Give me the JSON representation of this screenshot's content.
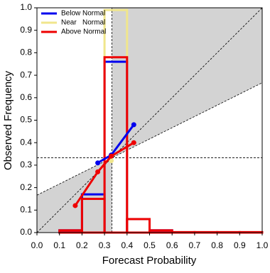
{
  "chart_data": {
    "type": "reliability",
    "xlabel": "Forecast Probability",
    "ylabel": "Observed Frequency",
    "xlim": [
      0,
      1
    ],
    "ylim": [
      0,
      1
    ],
    "xticks": [
      {
        "value": 0,
        "label": "0.0"
      },
      0.1,
      0.2,
      0.3,
      0.4,
      0.5,
      0.6,
      0.7,
      0.8,
      0.9,
      {
        "value": 1,
        "label": "1.0"
      }
    ],
    "yticks": [
      {
        "value": 0,
        "label": "0.0"
      },
      0.1,
      0.2,
      0.3,
      0.4,
      0.5,
      0.6,
      0.7,
      0.8,
      0.9,
      {
        "value": 1,
        "label": "1.0"
      }
    ],
    "climatology": 0.333,
    "bins": [
      0,
      0.1,
      0.2,
      0.3,
      0.4,
      0.5,
      0.6,
      0.7,
      0.8,
      0.9,
      1.0
    ],
    "legend": "upper left",
    "series": [
      {
        "name": "Below Normal",
        "color": "#0000ee",
        "x": [
          0.27,
          0.33,
          0.43
        ],
        "values": [
          0.31,
          0.345,
          0.48
        ],
        "hist": [
          0,
          0.01,
          0.17,
          0.76,
          0.06,
          0.01,
          0,
          0,
          0,
          0
        ]
      },
      {
        "name": "Near   Normal",
        "color": "#f0e68c",
        "x": [
          0.33
        ],
        "values": [
          0.32
        ],
        "hist": [
          0,
          0,
          0,
          0.99,
          0,
          0,
          0,
          0,
          0,
          0
        ]
      },
      {
        "name": "Above Normal",
        "color": "#ee0000",
        "x": [
          0.17,
          0.27,
          0.33,
          0.43
        ],
        "values": [
          0.12,
          0.27,
          0.34,
          0.4
        ],
        "hist": [
          0,
          0.01,
          0.15,
          0.78,
          0.06,
          0.01,
          0.002,
          0.002,
          0.002,
          0.002
        ]
      }
    ]
  }
}
